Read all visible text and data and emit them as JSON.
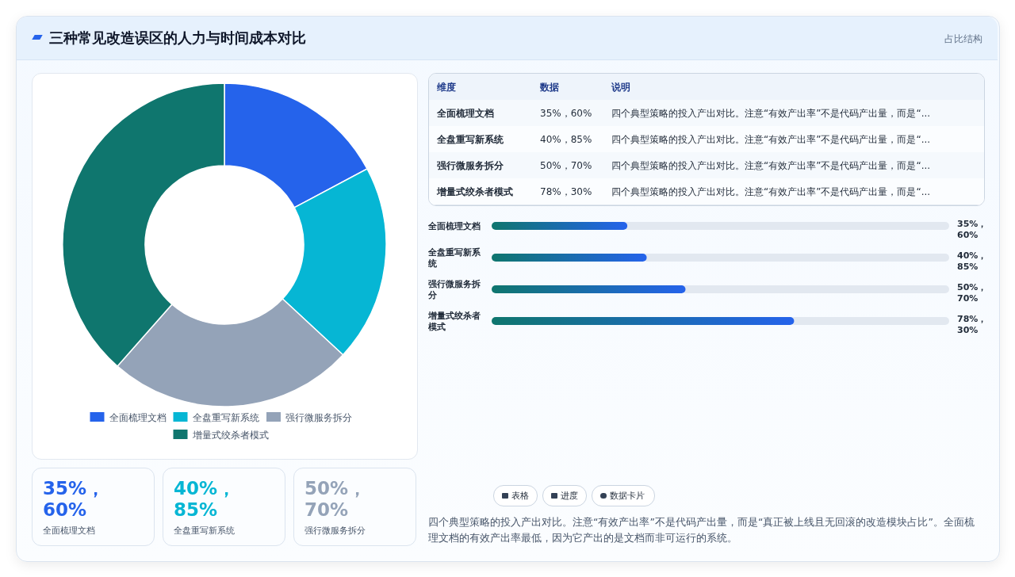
{
  "chart_data": [
    {
      "type": "donut",
      "title": "三种常见改造误区的人力与时间成本对比",
      "categories": [
        "全面梳理文档",
        "全盘重写新系统",
        "强行微服务拆分",
        "增量式绞杀者模式"
      ],
      "values": [
        17.2,
        19.7,
        24.6,
        38.5
      ],
      "colors": [
        "#2563eb",
        "#06b6d4",
        "#94a3b8",
        "#0f766e"
      ],
      "legend": "bottom"
    },
    {
      "type": "other",
      "subtitle": "占比结构",
      "annotations": [
        "维度",
        "数据",
        "说明",
        "全面梳理文档",
        "35%，60%",
        "四个典型策略的投入产出对比。注意“有效产出率”不是代码产出量，而是“...",
        "全盘重写新系统",
        "40%，85%",
        "四个典型策略的投入产出对比。注意“有效产出率”不是代码产出量，而是“...",
        "强行微服务拆分",
        "50%，70%",
        "四个典型策略的投入产出对比。注意“有效产出率”不是代码产出量，而是“...",
        "增量式绞杀者模式",
        "78%，30%",
        "四个典型策略的投入产出对比。注意“有效产出率”不是代码产出量，而是“..."
      ]
    },
    {
      "type": "bar",
      "orientation": "horizontal",
      "categories": [
        "全面梳理文档",
        "全盘重写新系统",
        "强行微服务拆分",
        "增量式绞杀者模式"
      ],
      "values": [
        35,
        40,
        50,
        78
      ],
      "value_labels": [
        "35%，60%",
        "40%，85%",
        "50%，70%",
        "78%，30%"
      ],
      "color": "#2563eb",
      "xlim": [
        0,
        118
      ],
      "tick_labels": "y"
    },
    {
      "type": "other",
      "annotations": [
        "35%，60%",
        "全面梳理文档",
        "40%，85%",
        "全盘重写新系统",
        "50%，70%",
        "强行微服务拆分"
      ],
      "colors": [
        "#2563eb",
        "#06b6d4",
        "#94a3b8"
      ]
    },
    {
      "type": "other",
      "annotations": [
        "表格",
        "进度",
        "数据卡片",
        "四个典型策略的投入产出对比。注意“有效产出率”不是代码产出量，而是“真正被上线且无回滚的改造模块占比”。全面梳理文档的有效产出率最低，因为它产出的是文档而非可运行的系统。"
      ]
    }
  ]
}
